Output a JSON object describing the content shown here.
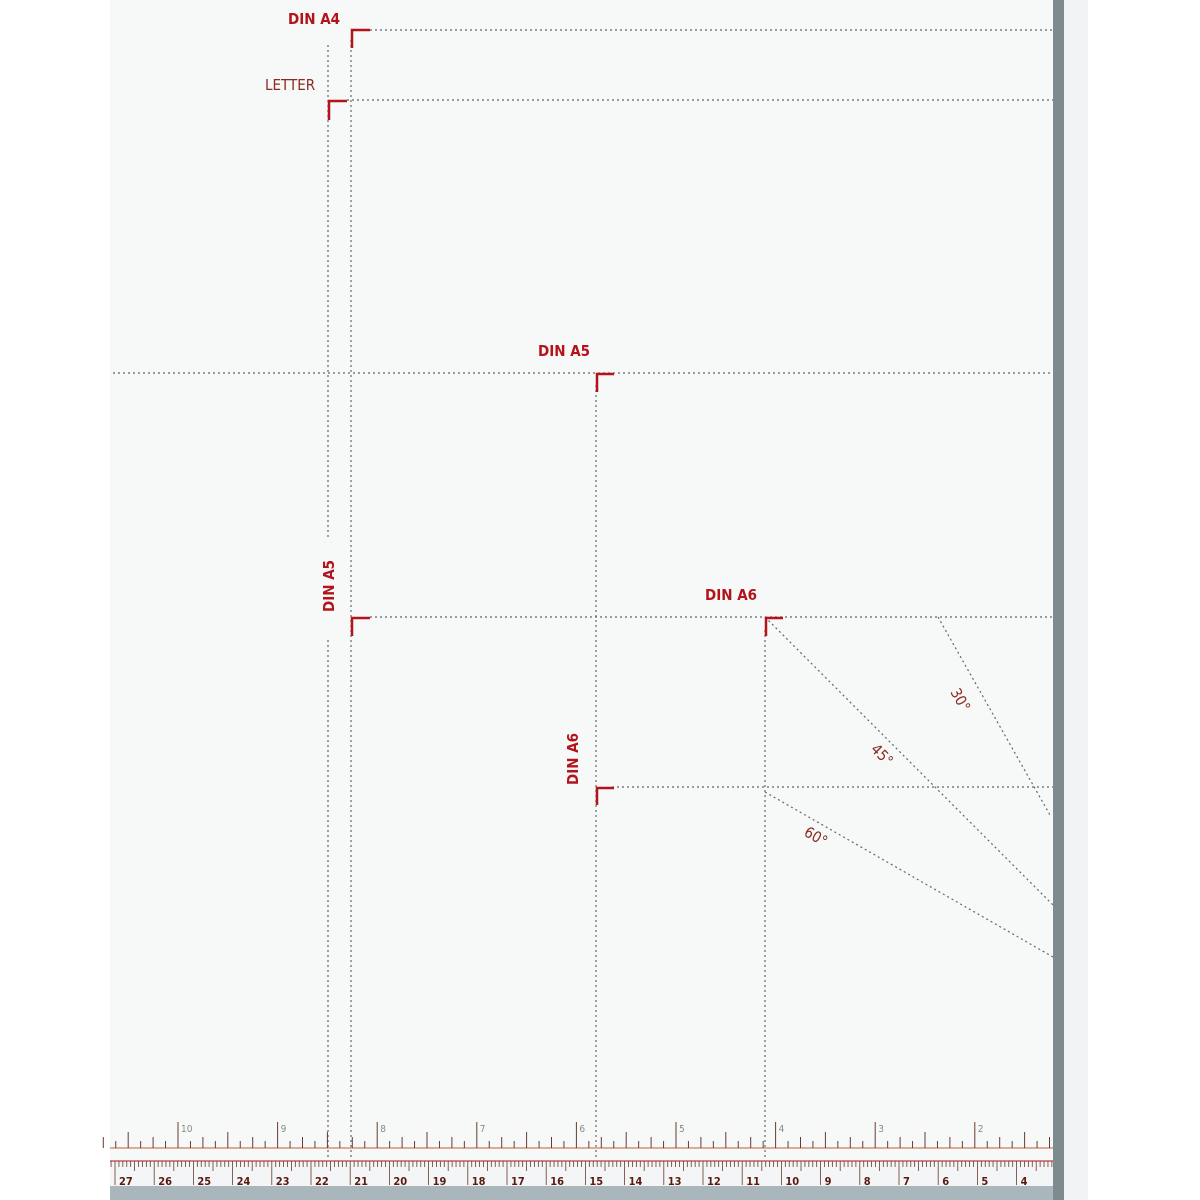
{
  "labels": {
    "din_a4": "DIN A4",
    "letter": "LETTER",
    "din_a5_h": "DIN A5",
    "din_a5_v": "DIN A5",
    "din_a6_h": "DIN A6",
    "din_a6_v": "DIN A6",
    "angle_30": "30°",
    "angle_45": "45°",
    "angle_60": "60°"
  },
  "inch_ruler": [
    "10",
    "9",
    "8",
    "7",
    "6",
    "5",
    "4",
    "3",
    "2"
  ],
  "cm_ruler": [
    "27",
    "26",
    "25",
    "24",
    "23",
    "22",
    "21",
    "20",
    "19",
    "18",
    "17",
    "16",
    "15",
    "14",
    "13",
    "12",
    "11",
    "10",
    "9",
    "8",
    "7",
    "6",
    "5",
    "4"
  ],
  "colors": {
    "accent": "#b3131b",
    "board": "#f7f8f8",
    "rail": "#7d8a90"
  }
}
